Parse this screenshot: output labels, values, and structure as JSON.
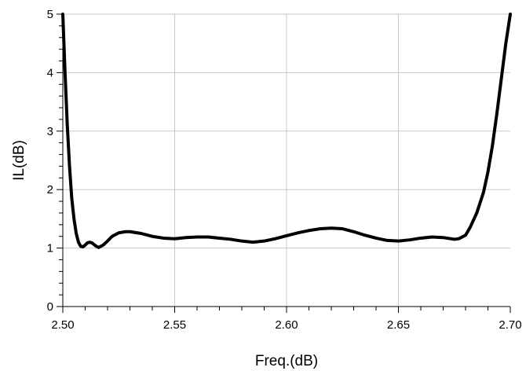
{
  "chart_data": {
    "type": "line",
    "title": "",
    "xlabel": "Freq.(dB)",
    "ylabel": "IL(dB)",
    "xlim": [
      2.5,
      2.7
    ],
    "ylim": [
      0,
      5
    ],
    "x_ticks": [
      "2.50",
      "2.55",
      "2.60",
      "2.65",
      "2.70"
    ],
    "y_ticks": [
      "0",
      "1",
      "2",
      "3",
      "4",
      "5"
    ],
    "grid": true,
    "line_color": "#000000",
    "grid_color": "#c8c8c8",
    "series": [
      {
        "x": [
          2.5,
          2.501,
          2.502,
          2.503,
          2.504,
          2.505,
          2.506,
          2.507,
          2.508,
          2.509,
          2.51,
          2.511,
          2.512,
          2.513,
          2.514,
          2.515,
          2.516,
          2.518,
          2.52,
          2.522,
          2.525,
          2.528,
          2.53,
          2.535,
          2.54,
          2.545,
          2.55,
          2.555,
          2.56,
          2.565,
          2.57,
          2.575,
          2.58,
          2.585,
          2.59,
          2.595,
          2.6,
          2.605,
          2.61,
          2.615,
          2.62,
          2.625,
          2.63,
          2.635,
          2.64,
          2.645,
          2.65,
          2.655,
          2.66,
          2.665,
          2.67,
          2.675,
          2.677,
          2.68,
          2.682,
          2.685,
          2.688,
          2.69,
          2.692,
          2.694,
          2.696,
          2.698,
          2.7
        ],
        "y": [
          5.0,
          4.0,
          3.1,
          2.4,
          1.85,
          1.5,
          1.25,
          1.1,
          1.03,
          1.02,
          1.05,
          1.09,
          1.1,
          1.09,
          1.06,
          1.03,
          1.01,
          1.05,
          1.12,
          1.2,
          1.26,
          1.28,
          1.28,
          1.25,
          1.2,
          1.17,
          1.16,
          1.18,
          1.19,
          1.19,
          1.17,
          1.15,
          1.12,
          1.1,
          1.12,
          1.16,
          1.21,
          1.26,
          1.3,
          1.33,
          1.34,
          1.33,
          1.28,
          1.22,
          1.17,
          1.13,
          1.12,
          1.14,
          1.17,
          1.19,
          1.18,
          1.15,
          1.16,
          1.22,
          1.35,
          1.6,
          1.95,
          2.3,
          2.75,
          3.3,
          3.9,
          4.5,
          5.0
        ]
      }
    ]
  }
}
